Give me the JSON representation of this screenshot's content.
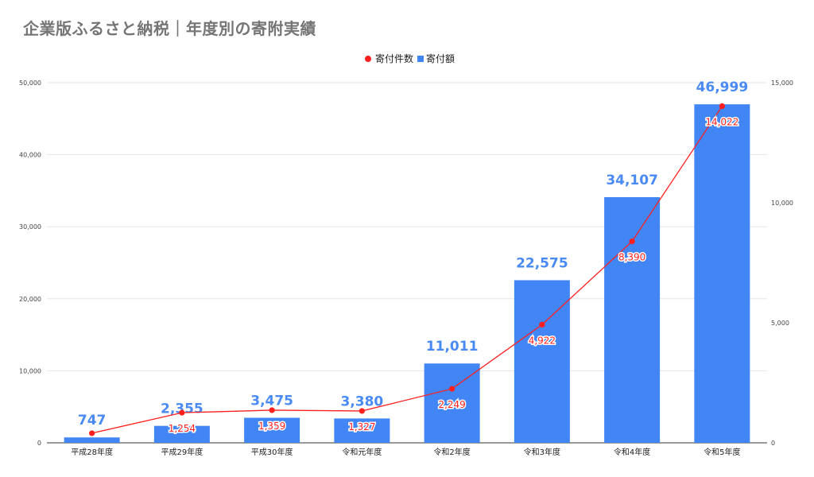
{
  "title": "企業版ふるさと納税｜年度別の寄附実績",
  "colors": {
    "bar": "#4285f4",
    "bar_label": "#4a8af4",
    "line": "#ff1f1f",
    "grid": "#e6e6e6",
    "title": "#757575"
  },
  "chart_data": {
    "type": "bar",
    "title": "企業版ふるさと納税｜年度別の寄附実績",
    "categories": [
      "平成28年度",
      "平成29年度",
      "平成30年度",
      "令和元年度",
      "令和2年度",
      "令和3年度",
      "令和4年度",
      "令和5年度"
    ],
    "series": [
      {
        "name": "寄付額",
        "type": "bar",
        "axis": "left",
        "values": [
          747,
          2355,
          3475,
          3380,
          11011,
          22575,
          34107,
          46999
        ]
      },
      {
        "name": "寄付件数",
        "type": "line",
        "axis": "right",
        "values": [
          400,
          1254,
          1359,
          1327,
          2249,
          4922,
          8390,
          14022
        ]
      }
    ],
    "value_labels": {
      "bar": [
        "747",
        "2,355",
        "3,475",
        "3,380",
        "11,011",
        "22,575",
        "34,107",
        "46,999"
      ],
      "line": [
        "",
        "1,254",
        "1,359",
        "1,327",
        "2,249",
        "4,922",
        "8,390",
        "14,022"
      ]
    },
    "legend": [
      "寄付件数",
      "寄付額"
    ],
    "legend_position": "top-center",
    "y_left": {
      "min": 0,
      "max": 50000,
      "ticks": [
        0,
        10000,
        20000,
        30000,
        40000,
        50000
      ],
      "tick_labels": [
        "0",
        "10,000",
        "20,000",
        "30,000",
        "40,000",
        "50,000"
      ]
    },
    "y_right": {
      "min": 0,
      "max": 15000,
      "ticks": [
        0,
        5000,
        10000,
        15000
      ],
      "tick_labels": [
        "0",
        "5,000",
        "10,000",
        "15,000"
      ]
    },
    "grid": true
  }
}
